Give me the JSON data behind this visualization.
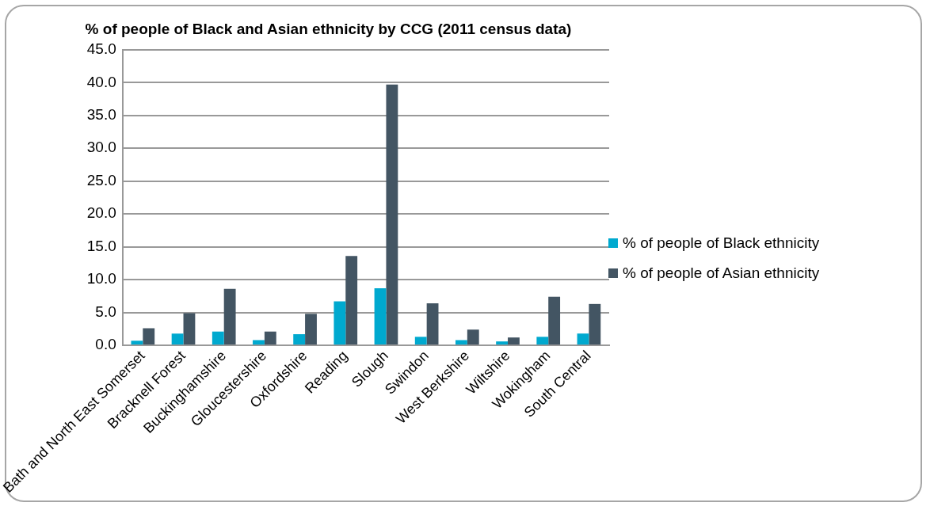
{
  "chart_data": {
    "type": "bar",
    "title": "% of people of Black and Asian ethnicity by CCG (2011 census data)",
    "categories": [
      "Bath and North East Somerset",
      "Bracknell Forest",
      "Buckinghamshire",
      "Gloucestershire",
      "Oxfordshire",
      "Reading",
      "Slough",
      "Swindon",
      "West Berkshire",
      "Wiltshire",
      "Wokingham",
      "South Central"
    ],
    "series": [
      {
        "name": "% of people of Black ethnicity",
        "color": "#00a9cf",
        "values": [
          0.7,
          1.8,
          2.1,
          0.8,
          1.7,
          6.7,
          8.7,
          1.3,
          0.8,
          0.6,
          1.3,
          1.8
        ]
      },
      {
        "name": "% of people of Asian ethnicity",
        "color": "#435563",
        "values": [
          2.6,
          4.9,
          8.6,
          2.1,
          4.8,
          13.6,
          39.7,
          6.4,
          2.4,
          1.2,
          7.4,
          6.3
        ]
      }
    ],
    "ylim": [
      0,
      45
    ],
    "yticks": [
      {
        "value": 0,
        "label": "0.0"
      },
      {
        "value": 5,
        "label": "5.0"
      },
      {
        "value": 10,
        "label": "10.0"
      },
      {
        "value": 15,
        "label": "15.0"
      },
      {
        "value": 20,
        "label": "20.0"
      },
      {
        "value": 25,
        "label": "25.0"
      },
      {
        "value": 30,
        "label": "30.0"
      },
      {
        "value": 35,
        "label": "35.0"
      },
      {
        "value": 40,
        "label": "40.0"
      },
      {
        "value": 45,
        "label": "45.0"
      }
    ],
    "grid": "y",
    "legend": "right"
  }
}
